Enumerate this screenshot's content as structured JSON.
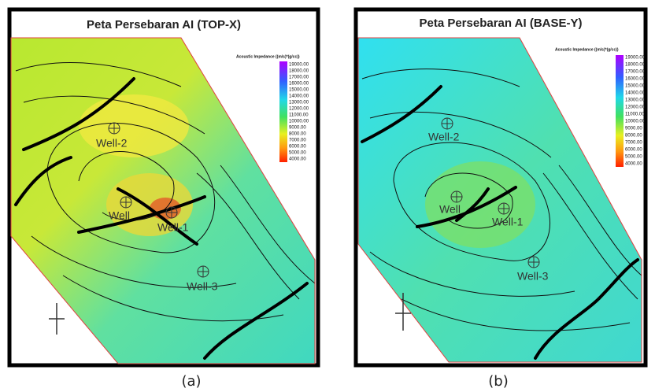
{
  "panels": [
    {
      "title": "Peta Persebaran AI (TOP-X)",
      "legend_title": "Acoustic Impedance ((m/s)*(g/cc))",
      "legend_labels": [
        "19000.00",
        "18000.00",
        "17000.00",
        "16000.00",
        "15000.00",
        "14000.00",
        "13000.00",
        "12000.00",
        "11000.00",
        "10000.00",
        "9000.00",
        "8000.00",
        "7000.00",
        "6000.00",
        "5000.00",
        "4000.00"
      ],
      "wells": [
        "Well-2",
        "Well",
        "Well-1",
        "Well-3"
      ],
      "caption": "(a)"
    },
    {
      "title": "Peta Persebaran AI (BASE-Y)",
      "legend_title": "Acoustic Impedance ((m/s)*(g/cc))",
      "legend_labels": [
        "19000.00",
        "18000.00",
        "17000.00",
        "16000.00",
        "15000.00",
        "14000.00",
        "13000.00",
        "12000.00",
        "11000.00",
        "10000.00",
        "9000.00",
        "8000.00",
        "7000.00",
        "6000.00",
        "5000.00",
        "4000.00"
      ],
      "wells": [
        "Well-2",
        "Well",
        "Well-1",
        "Well-3"
      ],
      "caption": "(b)"
    }
  ]
}
